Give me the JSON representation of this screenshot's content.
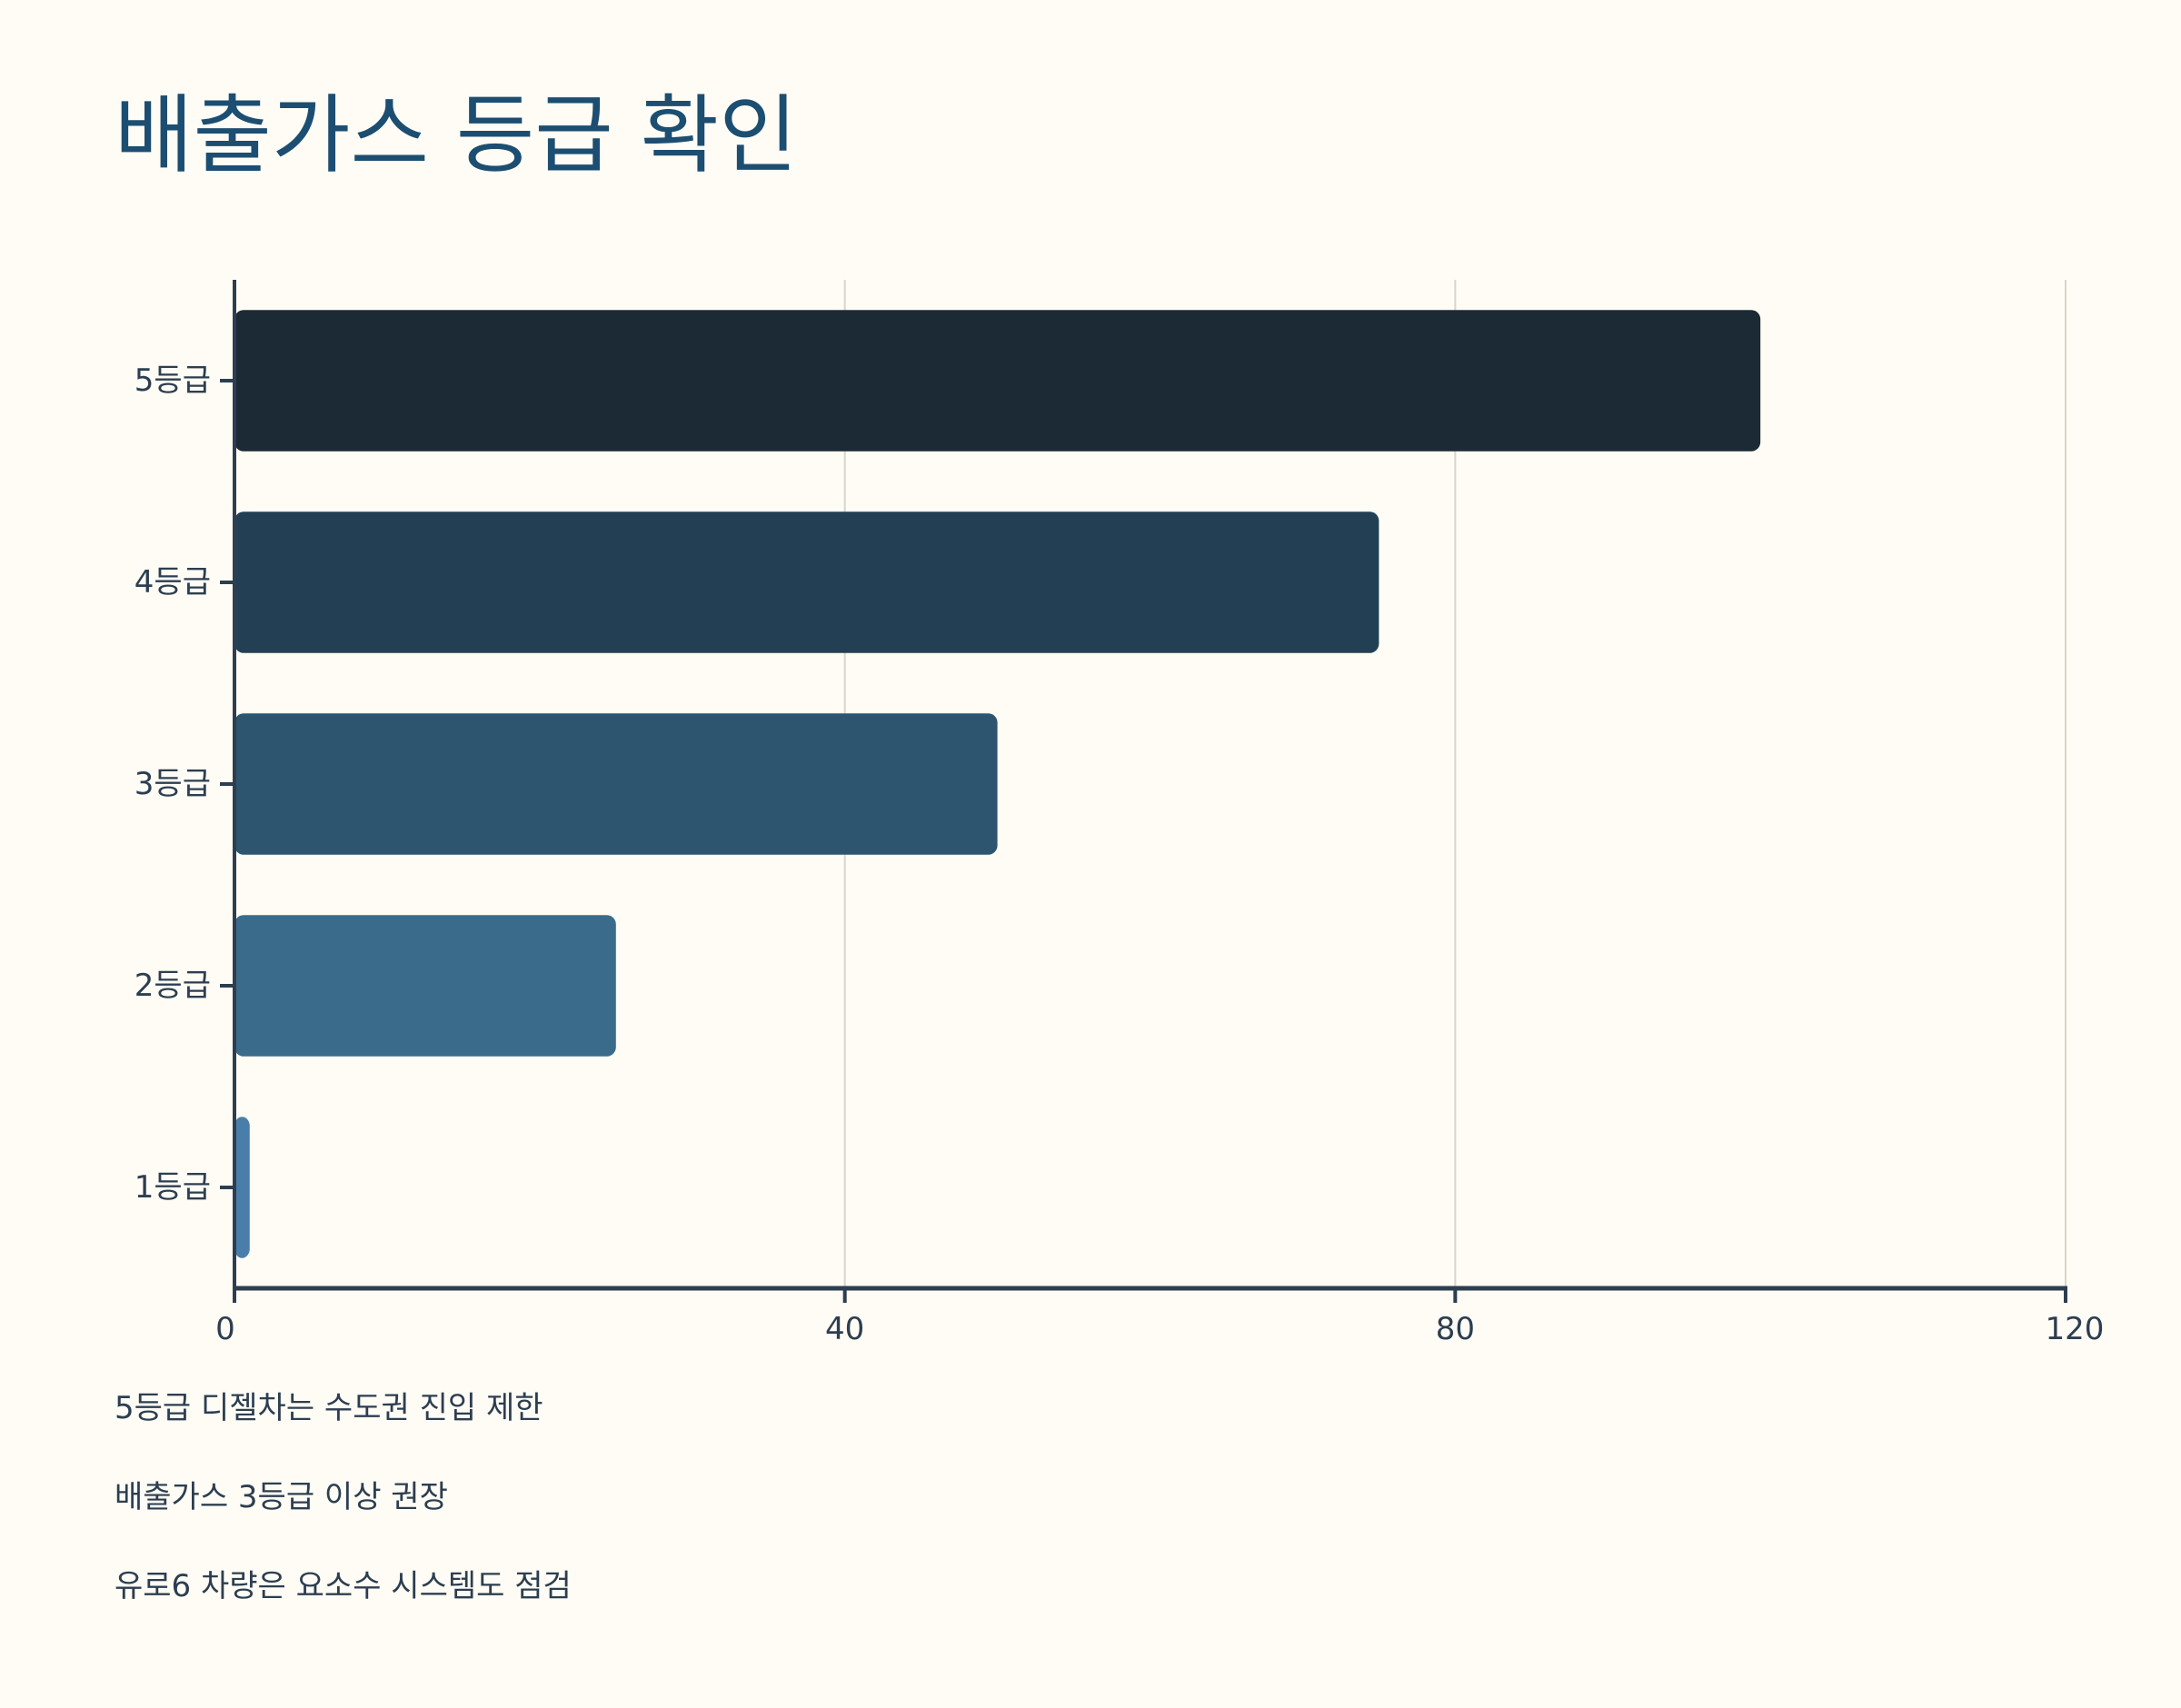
{
  "title": "배출가스 등급 확인",
  "chart_data": {
    "type": "bar",
    "orientation": "horizontal",
    "categories": [
      "5등급",
      "4등급",
      "3등급",
      "2등급",
      "1등급"
    ],
    "values": [
      100,
      75,
      50,
      25,
      1
    ],
    "xlim": [
      0,
      120
    ],
    "xticks": [
      0,
      40,
      80,
      120
    ],
    "grid": "vertical",
    "colors": [
      "#1b2a35",
      "#233f54",
      "#2e5570",
      "#3a6b8a",
      "#4a7eaa"
    ]
  },
  "notes": [
    "5등급 디젤차는 수도권 진입 제한",
    "배출가스 3등급 이상 권장",
    "유로6 차량은 요소수 시스템도 점검"
  ],
  "colors": {
    "title": "#1c4e72",
    "axis": "#2c3e50",
    "grid": "#d9d5cc",
    "background": "#fffcf5"
  }
}
